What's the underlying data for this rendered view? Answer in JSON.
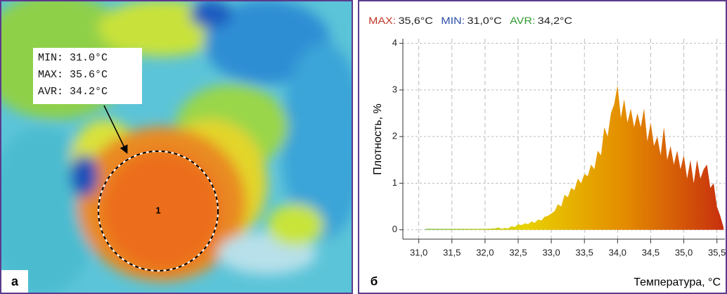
{
  "image_panel": {
    "label": "а",
    "annotation": [
      "MIN: 31.0°C",
      "MAX: 35.6°C",
      "AVR: 34.2°C"
    ],
    "region_label": "1"
  },
  "chart_data": {
    "type": "area",
    "label": "б",
    "stats": [
      {
        "name": "MAX:",
        "text": "35,6°C",
        "color": "#c0392b"
      },
      {
        "name": "MIN:",
        "text": "31,0°C",
        "color": "#2c4fa8"
      },
      {
        "name": "AVR:",
        "text": "34,2°C",
        "color": "#2e9a2e"
      }
    ],
    "ylabel": "Плотность, %",
    "xlabel": "Температура, °C",
    "x": [
      31.1,
      31.5,
      32.0,
      32.15,
      32.2,
      32.25,
      32.3,
      32.35,
      32.4,
      32.45,
      32.5,
      32.55,
      32.6,
      32.65,
      32.7,
      32.75,
      32.8,
      32.85,
      32.9,
      32.95,
      33.0,
      33.05,
      33.1,
      33.15,
      33.2,
      33.25,
      33.3,
      33.35,
      33.4,
      33.45,
      33.5,
      33.55,
      33.6,
      33.65,
      33.7,
      33.75,
      33.8,
      33.85,
      33.9,
      33.95,
      34.0,
      34.05,
      34.1,
      34.15,
      34.2,
      34.25,
      34.3,
      34.35,
      34.4,
      34.45,
      34.5,
      34.55,
      34.6,
      34.65,
      34.7,
      34.75,
      34.8,
      34.85,
      34.9,
      34.95,
      35.0,
      35.05,
      35.1,
      35.15,
      35.2,
      35.25,
      35.3,
      35.35,
      35.4,
      35.45,
      35.5,
      35.55,
      35.6
    ],
    "values": [
      0.02,
      0.02,
      0.02,
      0.03,
      0.05,
      0.02,
      0.04,
      0.03,
      0.08,
      0.06,
      0.12,
      0.1,
      0.14,
      0.12,
      0.18,
      0.15,
      0.22,
      0.2,
      0.28,
      0.3,
      0.35,
      0.4,
      0.55,
      0.5,
      0.75,
      0.7,
      0.9,
      0.85,
      1.1,
      1.0,
      1.2,
      1.15,
      1.4,
      1.3,
      1.7,
      1.6,
      2.2,
      2.0,
      2.5,
      2.7,
      3.1,
      2.4,
      2.8,
      2.3,
      2.6,
      2.2,
      2.5,
      2.2,
      2.6,
      1.9,
      2.3,
      1.8,
      2.0,
      1.6,
      2.2,
      1.5,
      1.8,
      1.4,
      1.7,
      1.3,
      1.6,
      1.1,
      1.5,
      1.0,
      1.5,
      1.1,
      1.3,
      1.4,
      0.9,
      1.0,
      0.5,
      0.3,
      0.05
    ],
    "gradient": [
      "#7cc142",
      "#e8d200",
      "#e48c00",
      "#c8300e"
    ],
    "xlim": [
      30.76,
      35.62
    ],
    "ylim": [
      -0.2,
      4.1
    ],
    "xticks": [
      {
        "value": 31.0,
        "label": "31,0"
      },
      {
        "value": 31.5,
        "label": "31,5"
      },
      {
        "value": 32.0,
        "label": "32,0"
      },
      {
        "value": 32.5,
        "label": "32,5"
      },
      {
        "value": 33.0,
        "label": "33,0"
      },
      {
        "value": 33.5,
        "label": "33,5"
      },
      {
        "value": 34.0,
        "label": "34,0"
      },
      {
        "value": 34.5,
        "label": "34,5"
      },
      {
        "value": 35.0,
        "label": "35,0"
      },
      {
        "value": 35.5,
        "label": "35,5"
      }
    ],
    "yticks": [
      0,
      1,
      2,
      3,
      4
    ],
    "grid": true
  }
}
